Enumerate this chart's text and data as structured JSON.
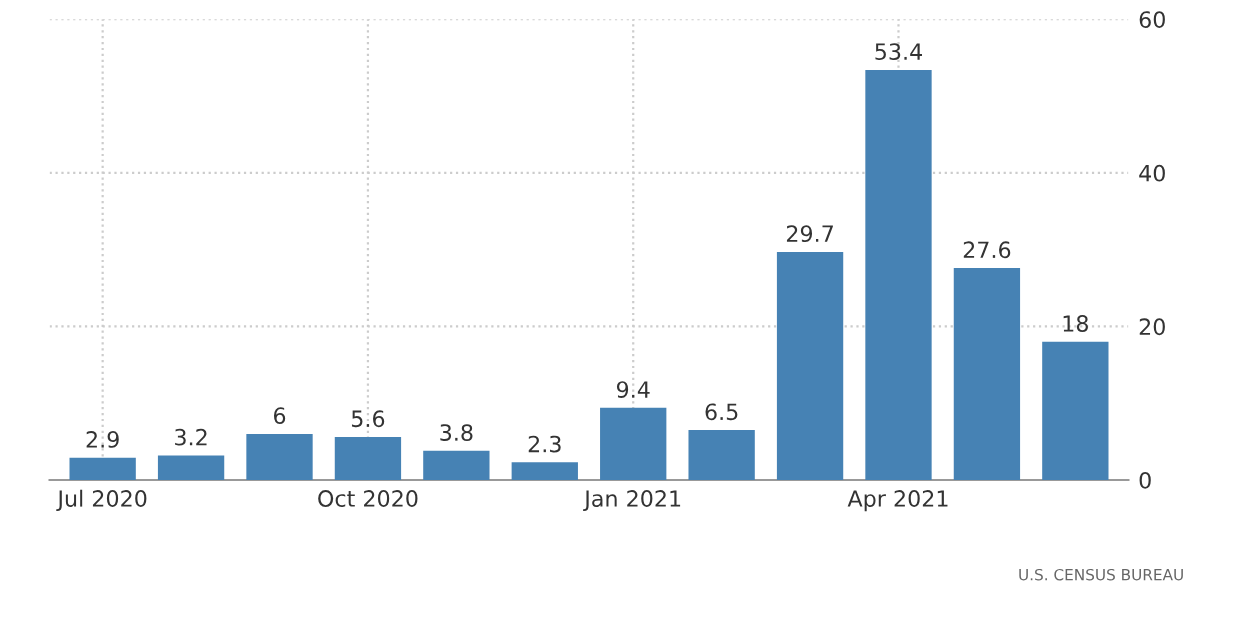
{
  "chart_data": {
    "type": "bar",
    "categories": [
      "Jul 2020",
      null,
      null,
      "Oct 2020",
      null,
      null,
      "Jan 2021",
      null,
      null,
      "Apr 2021",
      null,
      null
    ],
    "values": [
      2.9,
      3.2,
      6,
      5.6,
      3.8,
      2.3,
      9.4,
      6.5,
      29.7,
      53.4,
      27.6,
      18
    ],
    "color": "#4682b4",
    "ylim": [
      0,
      60
    ],
    "yticks": [
      0,
      20,
      40,
      60
    ],
    "grid": true,
    "data_labels": true,
    "annotations": [
      "U.S. CENSUS BUREAU"
    ]
  }
}
